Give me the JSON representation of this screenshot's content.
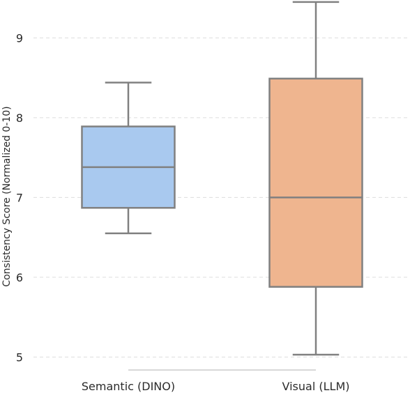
{
  "chart_data": {
    "type": "box",
    "title": "",
    "xlabel": "",
    "ylabel": "Consistency Score (Normalized 0-10)",
    "ylim": [
      4.96,
      9.44
    ],
    "yticks": [
      5,
      6,
      7,
      8,
      9
    ],
    "grid": "horizontal dashed",
    "categories": [
      "Semantic (DINO)",
      "Visual (LLM)"
    ],
    "boxes": [
      {
        "category": "Semantic (DINO)",
        "whisker_low": 6.55,
        "q1": 6.87,
        "median": 7.38,
        "q3": 7.89,
        "whisker_high": 8.44,
        "color": "#a9c9ef"
      },
      {
        "category": "Visual (LLM)",
        "whisker_low": 5.03,
        "q1": 5.88,
        "median": 7.0,
        "q3": 8.49,
        "whisker_high": 9.45,
        "color": "#efb58f"
      }
    ],
    "colors": {
      "line": "#808080",
      "grid": "#dddddd",
      "frame": "#cccccc",
      "text": "#2b2b2b"
    }
  }
}
